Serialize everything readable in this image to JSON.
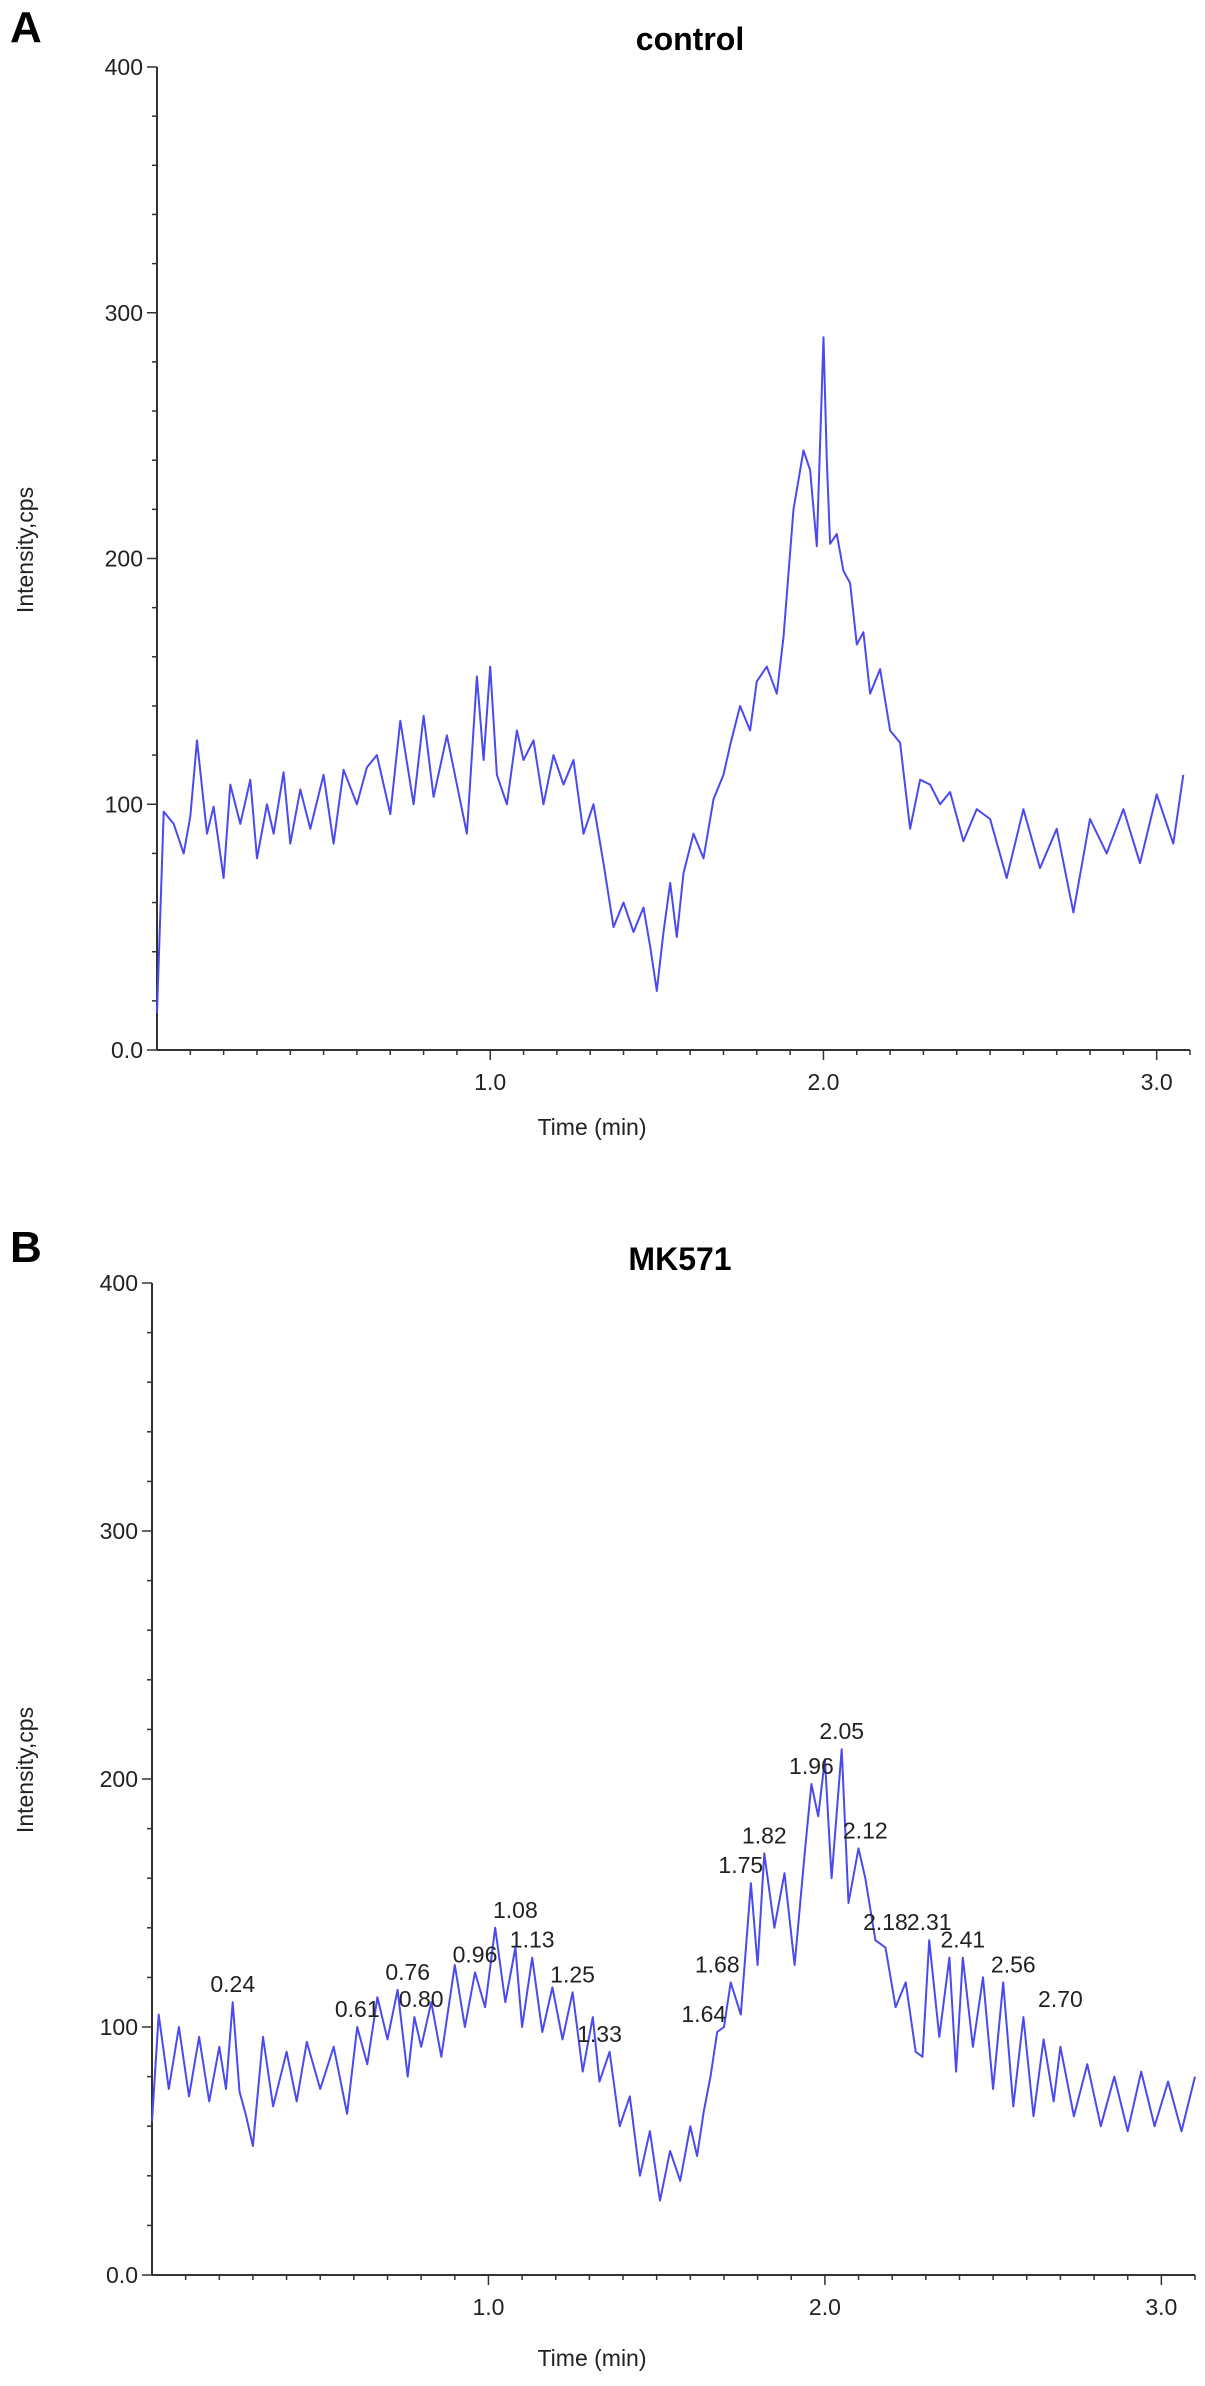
{
  "chart_data": [
    {
      "type": "line",
      "panel": "A",
      "title": "control",
      "xlabel": "Time (min)",
      "ylabel": "Intensity,cps",
      "xlim": [
        0.0,
        3.1
      ],
      "ylim": [
        0,
        400
      ],
      "xticks": [
        {
          "value": 1.0,
          "label": "1.0"
        },
        {
          "value": 2.0,
          "label": "2.0"
        },
        {
          "value": 3.0,
          "label": "3.0"
        }
      ],
      "yticks": [
        {
          "value": 0,
          "label": "0.0"
        },
        {
          "value": 100,
          "label": "100"
        },
        {
          "value": 200,
          "label": "200"
        },
        {
          "value": 300,
          "label": "300"
        },
        {
          "value": 400,
          "label": "400"
        }
      ],
      "grid": false,
      "series": [
        {
          "color": "#4a4af0",
          "x": [
            0.0,
            0.02,
            0.05,
            0.08,
            0.1,
            0.12,
            0.15,
            0.17,
            0.2,
            0.22,
            0.25,
            0.28,
            0.3,
            0.33,
            0.35,
            0.38,
            0.4,
            0.43,
            0.46,
            0.5,
            0.53,
            0.56,
            0.6,
            0.63,
            0.66,
            0.7,
            0.73,
            0.77,
            0.8,
            0.83,
            0.87,
            0.9,
            0.93,
            0.96,
            0.98,
            1.0,
            1.02,
            1.05,
            1.08,
            1.1,
            1.13,
            1.16,
            1.19,
            1.22,
            1.25,
            1.28,
            1.31,
            1.34,
            1.37,
            1.4,
            1.43,
            1.46,
            1.48,
            1.5,
            1.52,
            1.54,
            1.56,
            1.58,
            1.61,
            1.64,
            1.67,
            1.7,
            1.72,
            1.75,
            1.78,
            1.8,
            1.83,
            1.86,
            1.88,
            1.91,
            1.94,
            1.96,
            1.98,
            2.0,
            2.01,
            2.02,
            2.04,
            2.06,
            2.08,
            2.1,
            2.12,
            2.14,
            2.17,
            2.2,
            2.23,
            2.26,
            2.29,
            2.32,
            2.35,
            2.38,
            2.42,
            2.46,
            2.5,
            2.55,
            2.6,
            2.65,
            2.7,
            2.75,
            2.8,
            2.85,
            2.9,
            2.95,
            3.0,
            3.05,
            3.08
          ],
          "y": [
            15,
            97,
            92,
            80,
            95,
            126,
            88,
            99,
            70,
            108,
            92,
            110,
            78,
            100,
            88,
            113,
            84,
            106,
            90,
            112,
            84,
            114,
            100,
            115,
            120,
            96,
            134,
            100,
            136,
            103,
            128,
            108,
            88,
            152,
            118,
            156,
            112,
            100,
            130,
            118,
            126,
            100,
            120,
            108,
            118,
            88,
            100,
            76,
            50,
            60,
            48,
            58,
            42,
            24,
            48,
            68,
            46,
            72,
            88,
            78,
            102,
            112,
            124,
            140,
            130,
            150,
            156,
            145,
            168,
            220,
            244,
            236,
            205,
            290,
            240,
            206,
            210,
            195,
            190,
            165,
            170,
            145,
            155,
            130,
            125,
            90,
            110,
            108,
            100,
            105,
            85,
            98,
            94,
            70,
            98,
            74,
            90,
            56,
            94,
            80,
            98,
            76,
            104,
            84,
            112
          ]
        }
      ]
    },
    {
      "type": "line",
      "panel": "B",
      "title": "MK571",
      "xlabel": "Time (min)",
      "ylabel": "Intensity,cps",
      "xlim": [
        0.0,
        3.1
      ],
      "ylim": [
        0,
        400
      ],
      "xticks": [
        {
          "value": 1.0,
          "label": "1.0"
        },
        {
          "value": 2.0,
          "label": "2.0"
        },
        {
          "value": 3.0,
          "label": "3.0"
        }
      ],
      "yticks": [
        {
          "value": 0,
          "label": "0.0"
        },
        {
          "value": 100,
          "label": "100"
        },
        {
          "value": 200,
          "label": "200"
        },
        {
          "value": 300,
          "label": "300"
        },
        {
          "value": 400,
          "label": "400"
        }
      ],
      "grid": false,
      "series": [
        {
          "color": "#4a4af0",
          "x": [
            0.0,
            0.02,
            0.05,
            0.08,
            0.11,
            0.14,
            0.17,
            0.2,
            0.22,
            0.24,
            0.26,
            0.28,
            0.3,
            0.33,
            0.36,
            0.4,
            0.43,
            0.46,
            0.5,
            0.54,
            0.58,
            0.61,
            0.64,
            0.67,
            0.7,
            0.73,
            0.76,
            0.78,
            0.8,
            0.83,
            0.86,
            0.9,
            0.93,
            0.96,
            0.99,
            1.02,
            1.05,
            1.08,
            1.1,
            1.13,
            1.16,
            1.19,
            1.22,
            1.25,
            1.28,
            1.31,
            1.33,
            1.36,
            1.39,
            1.42,
            1.45,
            1.48,
            1.51,
            1.54,
            1.57,
            1.6,
            1.62,
            1.64,
            1.66,
            1.68,
            1.7,
            1.72,
            1.75,
            1.78,
            1.8,
            1.82,
            1.85,
            1.88,
            1.91,
            1.94,
            1.96,
            1.98,
            2.0,
            2.02,
            2.05,
            2.07,
            2.1,
            2.12,
            2.15,
            2.18,
            2.21,
            2.24,
            2.27,
            2.29,
            2.31,
            2.34,
            2.37,
            2.39,
            2.41,
            2.44,
            2.47,
            2.5,
            2.53,
            2.56,
            2.59,
            2.62,
            2.65,
            2.68,
            2.7,
            2.74,
            2.78,
            2.82,
            2.86,
            2.9,
            2.94,
            2.98,
            3.02,
            3.06,
            3.1
          ],
          "y": [
            62,
            105,
            75,
            100,
            72,
            96,
            70,
            92,
            75,
            110,
            74,
            64,
            52,
            96,
            68,
            90,
            70,
            94,
            75,
            92,
            65,
            100,
            85,
            112,
            95,
            115,
            80,
            104,
            92,
            110,
            88,
            125,
            100,
            122,
            108,
            140,
            110,
            132,
            100,
            128,
            98,
            116,
            95,
            114,
            82,
            104,
            78,
            90,
            60,
            72,
            40,
            58,
            30,
            50,
            38,
            60,
            48,
            66,
            80,
            98,
            100,
            118,
            105,
            158,
            125,
            170,
            140,
            162,
            125,
            170,
            198,
            185,
            208,
            160,
            212,
            150,
            172,
            160,
            135,
            132,
            108,
            118,
            90,
            88,
            135,
            96,
            128,
            82,
            128,
            92,
            120,
            75,
            118,
            68,
            104,
            64,
            95,
            70,
            92,
            64,
            85,
            60,
            80,
            58,
            82,
            60,
            78,
            58,
            80
          ]
        }
      ],
      "annotations": [
        {
          "label": "0.24",
          "x": 0.24,
          "y": 110
        },
        {
          "label": "0.61",
          "x": 0.61,
          "y": 100
        },
        {
          "label": "0.76",
          "x": 0.76,
          "y": 115
        },
        {
          "label": "0.80",
          "x": 0.8,
          "y": 104
        },
        {
          "label": "0.96",
          "x": 0.96,
          "y": 122
        },
        {
          "label": "1.08",
          "x": 1.08,
          "y": 140
        },
        {
          "label": "1.13",
          "x": 1.13,
          "y": 128
        },
        {
          "label": "1.25",
          "x": 1.25,
          "y": 114
        },
        {
          "label": "1.33",
          "x": 1.33,
          "y": 90
        },
        {
          "label": "1.64",
          "x": 1.64,
          "y": 98
        },
        {
          "label": "1.68",
          "x": 1.68,
          "y": 118
        },
        {
          "label": "1.75",
          "x": 1.75,
          "y": 158
        },
        {
          "label": "1.82",
          "x": 1.82,
          "y": 170
        },
        {
          "label": "1.96",
          "x": 1.96,
          "y": 198
        },
        {
          "label": "2.05",
          "x": 2.05,
          "y": 212
        },
        {
          "label": "2.12",
          "x": 2.12,
          "y": 172
        },
        {
          "label": "2.18",
          "x": 2.18,
          "y": 135
        },
        {
          "label": "2.31",
          "x": 2.31,
          "y": 135
        },
        {
          "label": "2.41",
          "x": 2.41,
          "y": 128
        },
        {
          "label": "2.56",
          "x": 2.56,
          "y": 118
        },
        {
          "label": "2.70",
          "x": 2.7,
          "y": 104
        }
      ]
    }
  ]
}
